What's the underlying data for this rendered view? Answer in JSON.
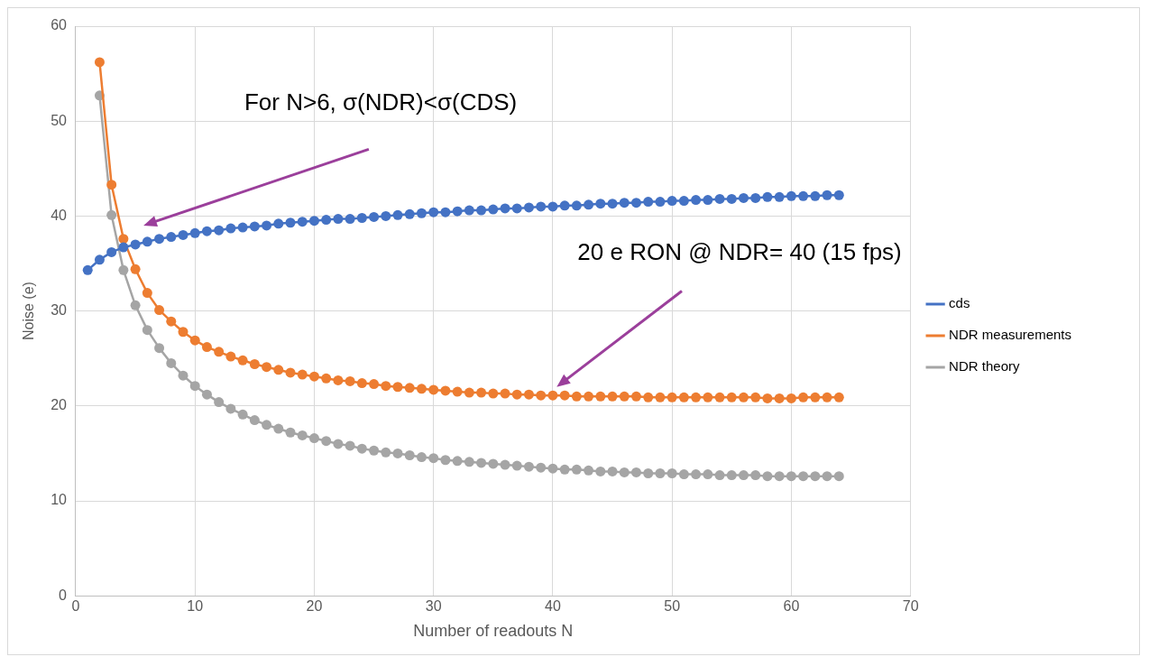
{
  "chart_data": {
    "type": "line",
    "xlabel": "Number of readouts N",
    "ylabel": "Noise (e)",
    "x": [
      1,
      2,
      3,
      4,
      5,
      6,
      7,
      8,
      9,
      10,
      11,
      12,
      13,
      14,
      15,
      16,
      17,
      18,
      19,
      20,
      21,
      22,
      23,
      24,
      25,
      26,
      27,
      28,
      29,
      30,
      31,
      32,
      33,
      34,
      35,
      36,
      37,
      38,
      39,
      40,
      41,
      42,
      43,
      44,
      45,
      46,
      47,
      48,
      49,
      50,
      51,
      52,
      53,
      54,
      55,
      56,
      57,
      58,
      59,
      60,
      61,
      62,
      63,
      64
    ],
    "series": [
      {
        "name": "cds",
        "color": "#4472c4",
        "values": [
          34.3,
          35.4,
          36.2,
          36.7,
          37.0,
          37.3,
          37.6,
          37.8,
          38.0,
          38.2,
          38.4,
          38.5,
          38.7,
          38.8,
          38.9,
          39.0,
          39.2,
          39.3,
          39.4,
          39.5,
          39.6,
          39.7,
          39.7,
          39.8,
          39.9,
          40.0,
          40.1,
          40.2,
          40.3,
          40.4,
          40.4,
          40.5,
          40.6,
          40.6,
          40.7,
          40.8,
          40.8,
          40.9,
          41.0,
          41.0,
          41.1,
          41.1,
          41.2,
          41.3,
          41.3,
          41.4,
          41.4,
          41.5,
          41.5,
          41.6,
          41.6,
          41.7,
          41.7,
          41.8,
          41.8,
          41.9,
          41.9,
          42.0,
          42.0,
          42.1,
          42.1,
          42.1,
          42.2,
          42.2
        ]
      },
      {
        "name": "NDR measurements",
        "color": "#ed7d31",
        "values": [
          null,
          56.2,
          43.3,
          37.6,
          34.4,
          31.9,
          30.1,
          28.9,
          27.8,
          26.9,
          26.2,
          25.7,
          25.2,
          24.8,
          24.4,
          24.1,
          23.8,
          23.5,
          23.3,
          23.1,
          22.9,
          22.7,
          22.6,
          22.4,
          22.3,
          22.1,
          22.0,
          21.9,
          21.8,
          21.7,
          21.6,
          21.5,
          21.4,
          21.4,
          21.3,
          21.3,
          21.2,
          21.2,
          21.1,
          21.1,
          21.1,
          21.0,
          21.0,
          21.0,
          21.0,
          21.0,
          21.0,
          20.9,
          20.9,
          20.9,
          20.9,
          20.9,
          20.9,
          20.9,
          20.9,
          20.9,
          20.9,
          20.8,
          20.8,
          20.8,
          20.9,
          20.9,
          20.9,
          20.9
        ]
      },
      {
        "name": "NDR theory",
        "color": "#a5a5a5",
        "values": [
          null,
          52.7,
          40.1,
          34.3,
          30.6,
          28.0,
          26.1,
          24.5,
          23.2,
          22.1,
          21.2,
          20.4,
          19.7,
          19.1,
          18.5,
          18.0,
          17.6,
          17.2,
          16.9,
          16.6,
          16.3,
          16.0,
          15.8,
          15.5,
          15.3,
          15.1,
          15.0,
          14.8,
          14.6,
          14.5,
          14.3,
          14.2,
          14.1,
          14.0,
          13.9,
          13.8,
          13.7,
          13.6,
          13.5,
          13.4,
          13.3,
          13.3,
          13.2,
          13.1,
          13.1,
          13.0,
          13.0,
          12.9,
          12.9,
          12.9,
          12.8,
          12.8,
          12.8,
          12.7,
          12.7,
          12.7,
          12.7,
          12.6,
          12.6,
          12.6,
          12.6,
          12.6,
          12.6,
          12.6
        ]
      }
    ],
    "xlim": [
      0,
      70
    ],
    "xticks": [
      0,
      10,
      20,
      30,
      40,
      50,
      60,
      70
    ],
    "ylim": [
      0,
      60
    ],
    "yticks": [
      0,
      10,
      20,
      30,
      40,
      50,
      60
    ],
    "grid": true,
    "legend": "right",
    "marker": "circle",
    "line_style": "solid",
    "annotations": [
      "For N>6, σ(NDR)<σ(CDS)",
      "20 e RON @ NDR= 40 (15 fps)"
    ]
  }
}
